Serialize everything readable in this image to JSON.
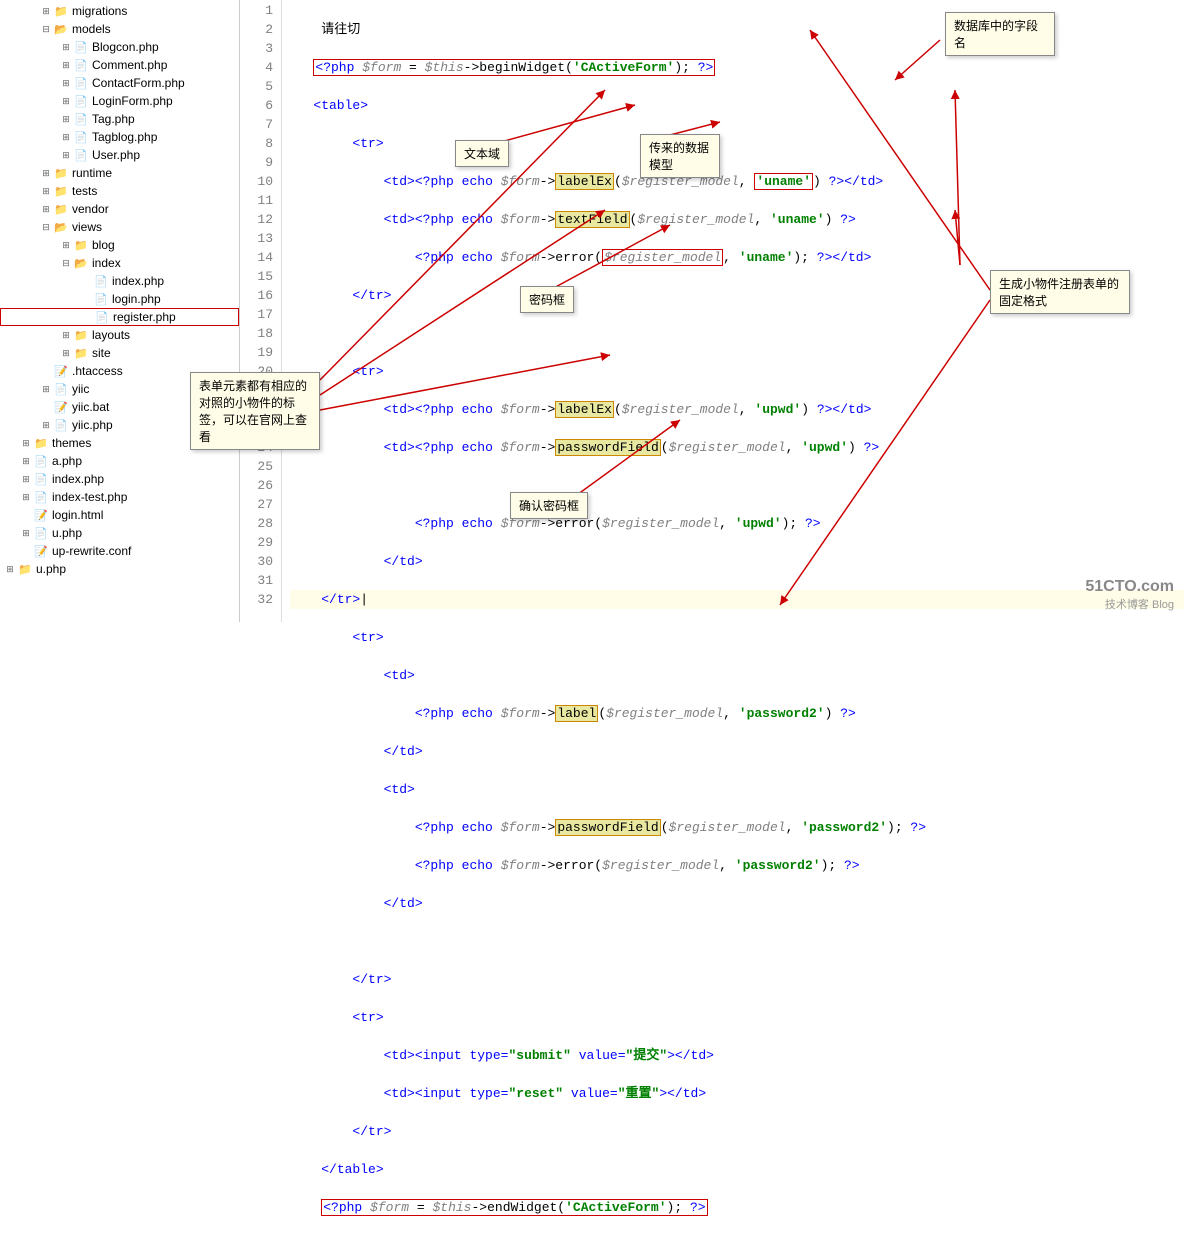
{
  "sidebar": {
    "items": [
      {
        "indent": 2,
        "type": "folder",
        "icon": "folder-closed",
        "exp": "⊞",
        "label": "migrations"
      },
      {
        "indent": 2,
        "type": "folder",
        "icon": "folder-open",
        "exp": "⊟",
        "label": "models"
      },
      {
        "indent": 3,
        "type": "file",
        "icon": "php-icon",
        "exp": "⊞",
        "label": "Blogcon.php"
      },
      {
        "indent": 3,
        "type": "file",
        "icon": "php-icon",
        "exp": "⊞",
        "label": "Comment.php"
      },
      {
        "indent": 3,
        "type": "file",
        "icon": "php-icon",
        "exp": "⊞",
        "label": "ContactForm.php"
      },
      {
        "indent": 3,
        "type": "file",
        "icon": "php-icon",
        "exp": "⊞",
        "label": "LoginForm.php"
      },
      {
        "indent": 3,
        "type": "file",
        "icon": "php-icon",
        "exp": "⊞",
        "label": "Tag.php"
      },
      {
        "indent": 3,
        "type": "file",
        "icon": "php-icon",
        "exp": "⊞",
        "label": "Tagblog.php"
      },
      {
        "indent": 3,
        "type": "file",
        "icon": "php-icon",
        "exp": "⊞",
        "label": "User.php"
      },
      {
        "indent": 2,
        "type": "folder",
        "icon": "folder-closed",
        "exp": "⊞",
        "label": "runtime"
      },
      {
        "indent": 2,
        "type": "folder",
        "icon": "folder-closed",
        "exp": "⊞",
        "label": "tests"
      },
      {
        "indent": 2,
        "type": "folder",
        "icon": "folder-closed",
        "exp": "⊞",
        "label": "vendor"
      },
      {
        "indent": 2,
        "type": "folder",
        "icon": "folder-open",
        "exp": "⊟",
        "label": "views"
      },
      {
        "indent": 3,
        "type": "folder",
        "icon": "folder-closed",
        "exp": "⊞",
        "label": "blog"
      },
      {
        "indent": 3,
        "type": "folder",
        "icon": "folder-open",
        "exp": "⊟",
        "label": "index"
      },
      {
        "indent": 4,
        "type": "file",
        "icon": "php-icon",
        "exp": "",
        "label": "index.php"
      },
      {
        "indent": 4,
        "type": "file",
        "icon": "php-icon",
        "exp": "",
        "label": "login.php"
      },
      {
        "indent": 4,
        "type": "file",
        "icon": "php-icon",
        "exp": "",
        "label": "register.php",
        "selected": true
      },
      {
        "indent": 3,
        "type": "folder",
        "icon": "folder-closed",
        "exp": "⊞",
        "label": "layouts"
      },
      {
        "indent": 3,
        "type": "folder",
        "icon": "folder-closed",
        "exp": "⊞",
        "label": "site"
      },
      {
        "indent": 2,
        "type": "file",
        "icon": "txt-icon",
        "exp": "",
        "label": ".htaccess"
      },
      {
        "indent": 2,
        "type": "file",
        "icon": "php-icon",
        "exp": "⊞",
        "label": "yiic"
      },
      {
        "indent": 2,
        "type": "file",
        "icon": "txt-icon",
        "exp": "",
        "label": "yiic.bat"
      },
      {
        "indent": 2,
        "type": "file",
        "icon": "php-icon",
        "exp": "⊞",
        "label": "yiic.php"
      },
      {
        "indent": 1,
        "type": "folder",
        "icon": "folder-closed",
        "exp": "⊞",
        "label": "themes"
      },
      {
        "indent": 1,
        "type": "file",
        "icon": "php-icon",
        "exp": "⊞",
        "label": "a.php"
      },
      {
        "indent": 1,
        "type": "file",
        "icon": "php-icon",
        "exp": "⊞",
        "label": "index.php"
      },
      {
        "indent": 1,
        "type": "file",
        "icon": "php-icon",
        "exp": "⊞",
        "label": "index-test.php"
      },
      {
        "indent": 1,
        "type": "file",
        "icon": "txt-icon",
        "exp": "",
        "label": "login.html"
      },
      {
        "indent": 1,
        "type": "file",
        "icon": "php-icon",
        "exp": "⊞",
        "label": "u.php"
      },
      {
        "indent": 1,
        "type": "file",
        "icon": "txt-icon",
        "exp": "",
        "label": "up-rewrite.conf"
      },
      {
        "indent": 0,
        "type": "folder",
        "icon": "folder-closed",
        "exp": "⊞",
        "label": "u.php"
      }
    ]
  },
  "gutter": {
    "start": 1,
    "end": 32
  },
  "callouts": {
    "c1": "数据库中的字段名",
    "c2": "文本域",
    "c3": "传来的数据模型",
    "c4": "密码框",
    "c5": "生成小物件注册表单的固定格式",
    "c6": "表单元素都有相应的对照的小物件的标签，可以在官网上查看",
    "c7": "确认密码框"
  },
  "watermark": {
    "big": "51CTO.com",
    "small": "技术博客   Blog"
  },
  "colors": {
    "keyword": "#0000ff",
    "variable": "#808080",
    "string": "#008000",
    "highlight_bg": "#e8e8a0",
    "highlight_border": "#cc8800",
    "redbox": "#cc0000",
    "callout_bg": "#fffde7",
    "line_hl": "#fffde7",
    "arrow": "#cc0000"
  }
}
